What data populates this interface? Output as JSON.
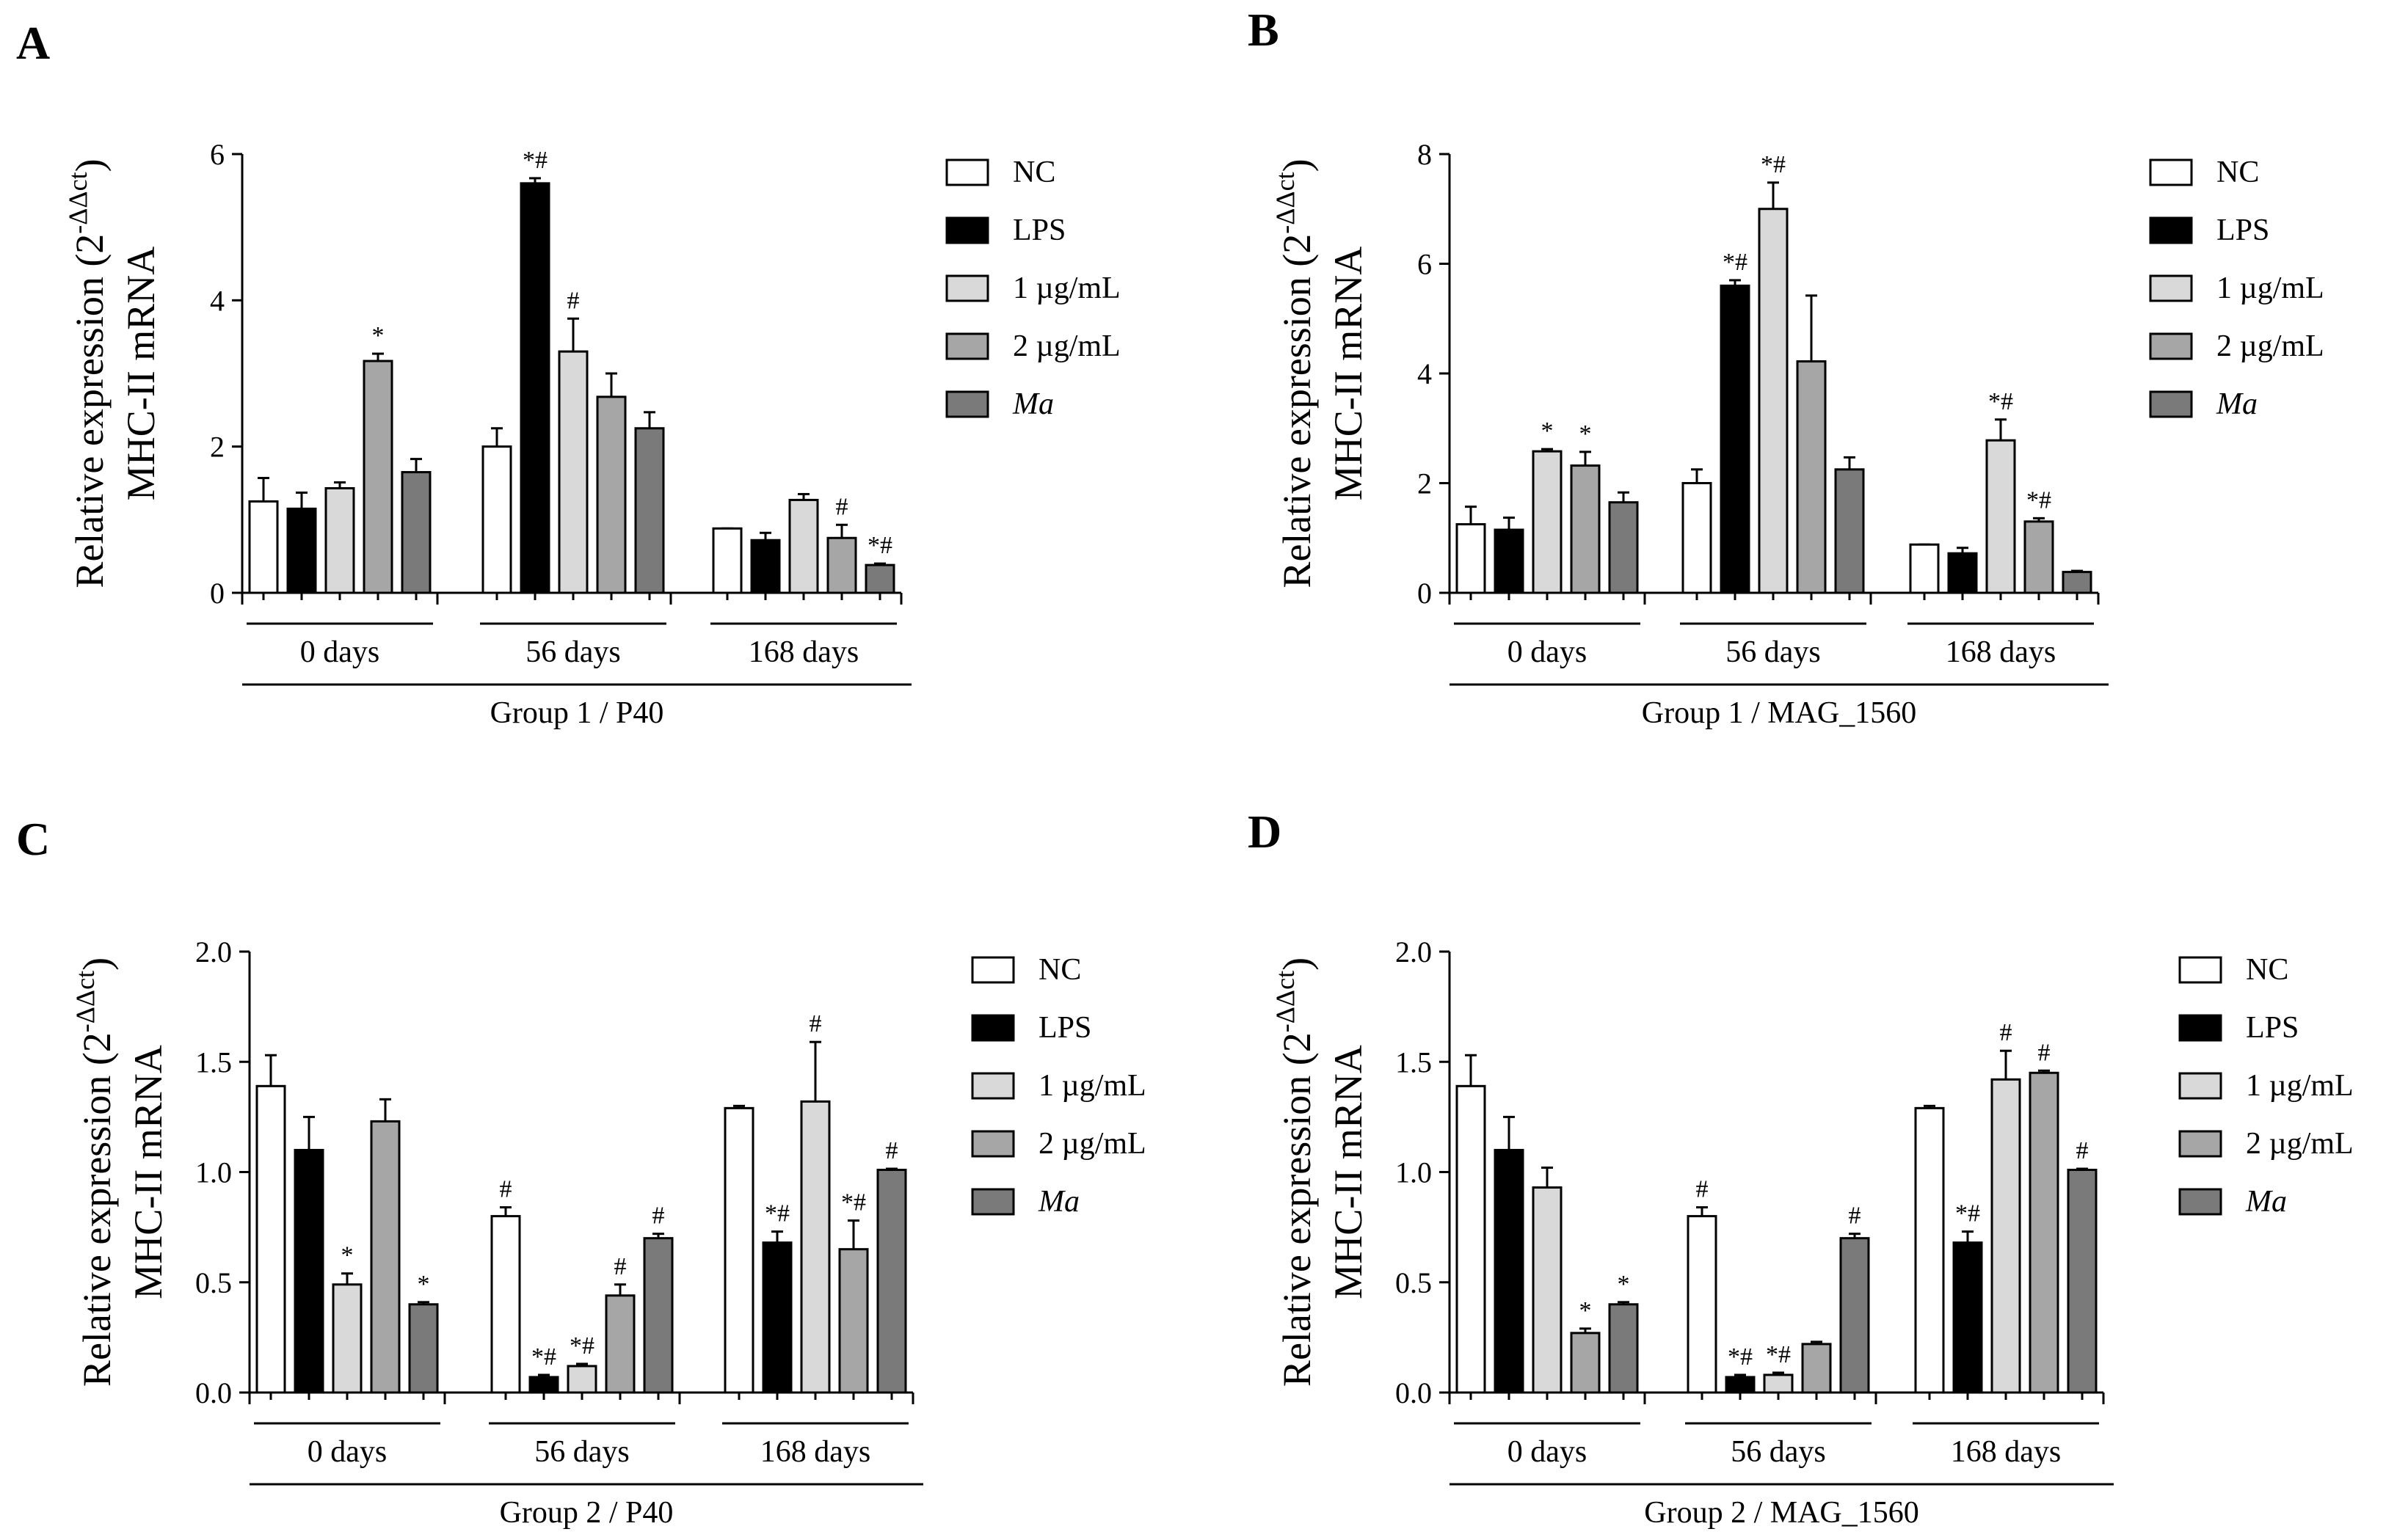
{
  "legend": {
    "entries": [
      {
        "key": "nc",
        "label": "NC",
        "color": "#ffffff",
        "italic": false
      },
      {
        "key": "lps",
        "label": "LPS",
        "color": "#000000",
        "italic": false
      },
      {
        "key": "c1",
        "label": "1 µg/mL",
        "color": "#d9d9d9",
        "italic": false
      },
      {
        "key": "c2",
        "label": "2 µg/mL",
        "color": "#a6a6a6",
        "italic": false
      },
      {
        "key": "ma",
        "label": "Ma",
        "color": "#7a7a7a",
        "italic": true
      }
    ]
  },
  "chart_data": [
    {
      "panel": "A",
      "type": "bar",
      "ylabel_line1": "Relative expression (2",
      "ylabel_sup": "-ΔΔct",
      "ylabel_line1_close": ")",
      "ylabel_line2": "MHC-II mRNA",
      "ylim": [
        0,
        6
      ],
      "ticks": [
        "0",
        "2",
        "4",
        "6"
      ],
      "tick_values": [
        0,
        2,
        4,
        6
      ],
      "categories": [
        "0 days",
        "56 days",
        "168 days"
      ],
      "group_label": "Group 1 / P40",
      "series": [
        {
          "name": "NC",
          "values": [
            1.25,
            2.0,
            0.88
          ],
          "errors": [
            0.32,
            0.25,
            0.0
          ],
          "annotations": [
            "",
            "",
            ""
          ]
        },
        {
          "name": "LPS",
          "values": [
            1.15,
            5.6,
            0.72
          ],
          "errors": [
            0.22,
            0.07,
            0.1
          ],
          "annotations": [
            "",
            "*#",
            ""
          ]
        },
        {
          "name": "1 µg/mL",
          "values": [
            1.43,
            3.3,
            1.27
          ],
          "errors": [
            0.08,
            0.45,
            0.08
          ],
          "annotations": [
            "",
            "#",
            ""
          ]
        },
        {
          "name": "2 µg/mL",
          "values": [
            3.17,
            2.68,
            0.75
          ],
          "errors": [
            0.1,
            0.32,
            0.18
          ],
          "annotations": [
            "*",
            "",
            "#"
          ]
        },
        {
          "name": "Ma",
          "values": [
            1.65,
            2.25,
            0.38
          ],
          "errors": [
            0.18,
            0.22,
            0.02
          ],
          "annotations": [
            "",
            "",
            "*#"
          ]
        }
      ]
    },
    {
      "panel": "B",
      "type": "bar",
      "ylabel_line1": "Relative expression (2",
      "ylabel_sup": "-ΔΔct",
      "ylabel_line1_close": ")",
      "ylabel_line2": "MHC-II mRNA",
      "ylim": [
        0,
        8
      ],
      "ticks": [
        "0",
        "2",
        "4",
        "6",
        "8"
      ],
      "tick_values": [
        0,
        2,
        4,
        6,
        8
      ],
      "categories": [
        "0 days",
        "56 days",
        "168 days"
      ],
      "group_label": "Group 1 / MAG_1560",
      "series": [
        {
          "name": "NC",
          "values": [
            1.25,
            2.0,
            0.88
          ],
          "errors": [
            0.32,
            0.25,
            0.0
          ],
          "annotations": [
            "",
            "",
            ""
          ]
        },
        {
          "name": "LPS",
          "values": [
            1.15,
            5.6,
            0.72
          ],
          "errors": [
            0.22,
            0.1,
            0.1
          ],
          "annotations": [
            "",
            "*#",
            ""
          ]
        },
        {
          "name": "1 µg/mL",
          "values": [
            2.58,
            7.0,
            2.78
          ],
          "errors": [
            0.04,
            0.48,
            0.38
          ],
          "annotations": [
            "*",
            "*#",
            "*#"
          ]
        },
        {
          "name": "2 µg/mL",
          "values": [
            2.32,
            4.22,
            1.3
          ],
          "errors": [
            0.25,
            1.2,
            0.06
          ],
          "annotations": [
            "*",
            "",
            "*#"
          ]
        },
        {
          "name": "Ma",
          "values": [
            1.65,
            2.25,
            0.38
          ],
          "errors": [
            0.18,
            0.22,
            0.02
          ],
          "annotations": [
            "",
            "",
            ""
          ]
        }
      ]
    },
    {
      "panel": "C",
      "type": "bar",
      "ylabel_line1": "Relative expression (2",
      "ylabel_sup": "-ΔΔct",
      "ylabel_line1_close": ")",
      "ylabel_line2": "MHC-II mRNA",
      "ylim": [
        0,
        2.0
      ],
      "ticks": [
        "0.0",
        "0.5",
        "1.0",
        "1.5",
        "2.0"
      ],
      "tick_values": [
        0,
        0.5,
        1.0,
        1.5,
        2.0
      ],
      "categories": [
        "0 days",
        "56 days",
        "168 days"
      ],
      "group_label": "Group 2 / P40",
      "series": [
        {
          "name": "NC",
          "values": [
            1.39,
            0.8,
            1.29
          ],
          "errors": [
            0.14,
            0.04,
            0.01
          ],
          "annotations": [
            "",
            "#",
            ""
          ]
        },
        {
          "name": "LPS",
          "values": [
            1.1,
            0.07,
            0.68
          ],
          "errors": [
            0.15,
            0.01,
            0.05
          ],
          "annotations": [
            "",
            "*#",
            "*#"
          ]
        },
        {
          "name": "1 µg/mL",
          "values": [
            0.49,
            0.12,
            1.32
          ],
          "errors": [
            0.05,
            0.01,
            0.27
          ],
          "annotations": [
            "*",
            "*#",
            "#"
          ]
        },
        {
          "name": "2 µg/mL",
          "values": [
            1.23,
            0.44,
            0.65
          ],
          "errors": [
            0.1,
            0.05,
            0.13
          ],
          "annotations": [
            "",
            "#",
            "*#"
          ]
        },
        {
          "name": "Ma",
          "values": [
            0.4,
            0.7,
            1.01
          ],
          "errors": [
            0.01,
            0.02,
            0.005
          ],
          "annotations": [
            "*",
            "#",
            "#"
          ]
        }
      ]
    },
    {
      "panel": "D",
      "type": "bar",
      "ylabel_line1": "Relative expression (2",
      "ylabel_sup": "-ΔΔct",
      "ylabel_line1_close": ")",
      "ylabel_line2": "MHC-II mRNA",
      "ylim": [
        0,
        2.0
      ],
      "ticks": [
        "0.0",
        "0.5",
        "1.0",
        "1.5",
        "2.0"
      ],
      "tick_values": [
        0,
        0.5,
        1.0,
        1.5,
        2.0
      ],
      "categories": [
        "0 days",
        "56 days",
        "168 days"
      ],
      "group_label": "Group 2 / MAG_1560",
      "series": [
        {
          "name": "NC",
          "values": [
            1.39,
            0.8,
            1.29
          ],
          "errors": [
            0.14,
            0.04,
            0.01
          ],
          "annotations": [
            "",
            "#",
            ""
          ]
        },
        {
          "name": "LPS",
          "values": [
            1.1,
            0.07,
            0.68
          ],
          "errors": [
            0.15,
            0.01,
            0.05
          ],
          "annotations": [
            "",
            "*#",
            "*#"
          ]
        },
        {
          "name": "1 µg/mL",
          "values": [
            0.93,
            0.08,
            1.42
          ],
          "errors": [
            0.09,
            0.01,
            0.13
          ],
          "annotations": [
            "",
            "*#",
            "#"
          ]
        },
        {
          "name": "2 µg/mL",
          "values": [
            0.27,
            0.22,
            1.45
          ],
          "errors": [
            0.02,
            0.01,
            0.01
          ],
          "annotations": [
            "*",
            "",
            "#"
          ]
        },
        {
          "name": "Ma",
          "values": [
            0.4,
            0.7,
            1.01
          ],
          "errors": [
            0.01,
            0.02,
            0.005
          ],
          "annotations": [
            "*",
            "#",
            "#"
          ]
        }
      ]
    }
  ]
}
